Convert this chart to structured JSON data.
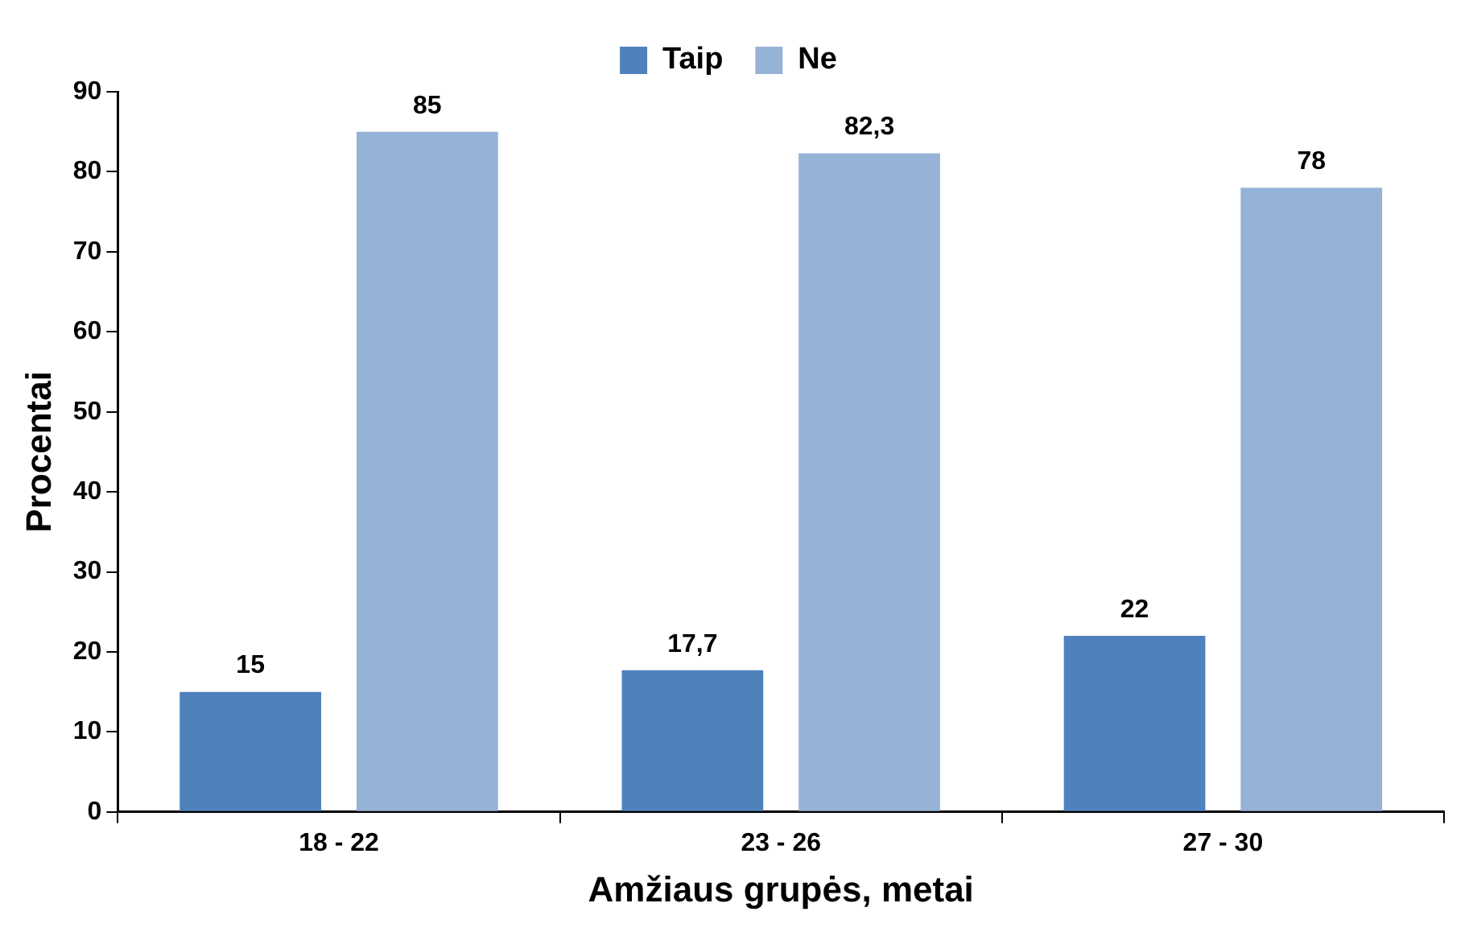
{
  "chart_data": {
    "type": "bar",
    "xlabel": "Amžiaus grupės, metai",
    "ylabel": "Procentai",
    "categories": [
      "18 - 22",
      "23 - 26",
      "27 - 30"
    ],
    "series": [
      {
        "name": "Taip",
        "color": "#4f81bd",
        "values": [
          15,
          17.7,
          22
        ],
        "value_labels": [
          "15",
          "17,7",
          "22"
        ]
      },
      {
        "name": "Ne",
        "color": "#95b3d7",
        "values": [
          85,
          82.3,
          78
        ],
        "value_labels": [
          "85",
          "82,3",
          "78"
        ]
      }
    ],
    "ylim": [
      0,
      90
    ],
    "yticks": [
      0,
      10,
      20,
      30,
      40,
      50,
      60,
      70,
      80,
      90
    ],
    "grid": false,
    "legend": "top"
  }
}
